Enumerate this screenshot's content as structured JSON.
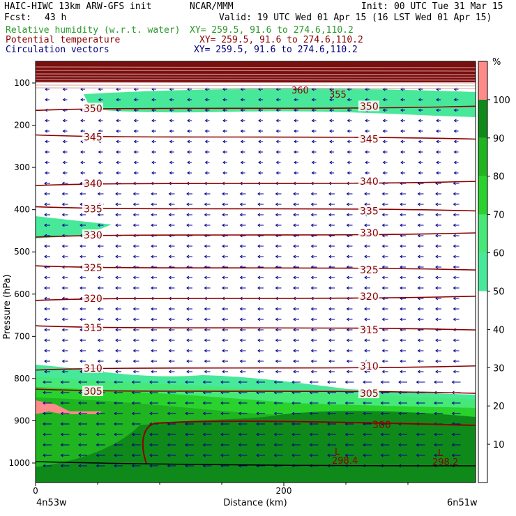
{
  "header": {
    "model": "HAIC-HIWC 13km ARW-GFS init",
    "org": "NCAR/MMM",
    "init": "Init: 00 UTC Tue 31 Mar 15",
    "fcst_label": "Fcst:",
    "fcst_value": "43 h",
    "valid": "Valid: 19 UTC Wed 01 Apr 15 (16 LST Wed 01 Apr 15)"
  },
  "layers": [
    {
      "name": "Relative humidity (w.r.t. water)",
      "xy": "XY= 259.5, 91.6 to 274.6,110.2",
      "color": "#2a9a2a"
    },
    {
      "name": "Potential temperature",
      "xy": "XY= 259.5, 91.6 to 274.6,110.2",
      "color": "#8b0000"
    },
    {
      "name": "Circulation vectors",
      "xy": "XY= 259.5, 91.6 to 274.6,110.2",
      "color": "#000080"
    }
  ],
  "chart_data": {
    "type": "heatmap",
    "title": "",
    "xlabel": "Distance (km)",
    "ylabel": "Pressure (hPa)",
    "xlim": [
      0,
      300
    ],
    "x_ticks": [
      0,
      200
    ],
    "y_ticks": [
      100,
      200,
      300,
      400,
      500,
      600,
      700,
      800,
      900,
      1000
    ],
    "y_scale": "linear, inverted",
    "x_endpoints": {
      "left": "4n53w",
      "right": "6n51w"
    },
    "colorbar": {
      "unit": "%",
      "ticks": [
        10,
        20,
        30,
        40,
        50,
        60,
        70,
        80,
        90,
        100
      ],
      "colors": [
        {
          "from": 50,
          "to": 60,
          "color": "#48e89a"
        },
        {
          "from": 60,
          "to": 70,
          "color": "#46e878"
        },
        {
          "from": 70,
          "to": 80,
          "color": "#2ad22e"
        },
        {
          "from": 80,
          "to": 90,
          "color": "#20b420"
        },
        {
          "from": 90,
          "to": 100,
          "color": "#0f8a1a"
        },
        {
          "from": 100,
          "to": 110,
          "color": "#ff8a8a"
        }
      ]
    },
    "theta_contours": [
      {
        "value": 350,
        "label": "350",
        "p": 160
      },
      {
        "value": 345,
        "label": "345",
        "p": 228
      },
      {
        "value": 340,
        "label": "340",
        "p": 338
      },
      {
        "value": 335,
        "label": "335",
        "p": 398
      },
      {
        "value": 330,
        "label": "330",
        "p": 460
      },
      {
        "value": 325,
        "label": "325",
        "p": 538
      },
      {
        "value": 320,
        "label": "320",
        "p": 610
      },
      {
        "value": 315,
        "label": "315",
        "p": 680
      },
      {
        "value": 310,
        "label": "310",
        "p": 775
      },
      {
        "value": 305,
        "label": "305",
        "p": 830
      },
      {
        "value": 300,
        "label": "300",
        "p": 920
      }
    ],
    "upper_labels": [
      "360",
      "355"
    ],
    "low_labels": [
      "298.4",
      "298.2"
    ],
    "annotations": [
      "L",
      "L"
    ]
  }
}
